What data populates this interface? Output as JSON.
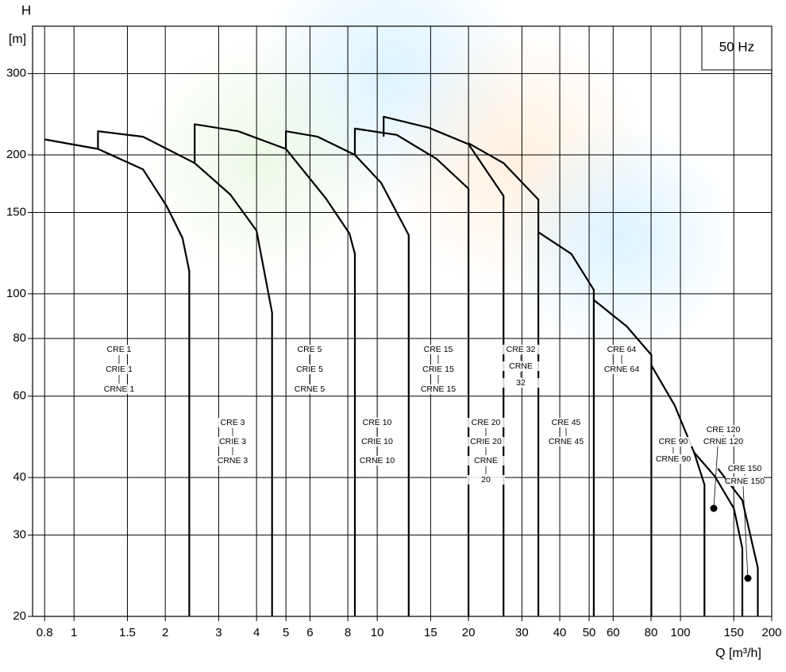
{
  "chart_data": {
    "type": "line",
    "x_label": "Q [m³/h]",
    "y_label": "H",
    "y_unit": "[m]",
    "annotation": "50 Hz",
    "log_x": true,
    "log_y": true,
    "grid": true,
    "line_color": "#000000",
    "xlim": [
      0.73,
      200
    ],
    "ylim": [
      20,
      380
    ],
    "xticks": [
      0.8,
      1,
      1.5,
      2,
      3,
      4,
      5,
      6,
      8,
      10,
      15,
      20,
      30,
      40,
      50,
      60,
      80,
      100,
      150,
      200
    ],
    "yticks": [
      20,
      30,
      40,
      60,
      80,
      100,
      150,
      200,
      300
    ],
    "series": [
      {
        "labels": [
          "CRE 1",
          "CRIE 1",
          "CRNE 1"
        ],
        "x": [
          0.8,
          1.2,
          1.69,
          2.02,
          2.28,
          2.4,
          2.4
        ],
        "values": [
          216,
          206,
          186,
          155,
          132,
          112,
          20
        ]
      },
      {
        "labels": [
          "CRE 3",
          "CRIE 3",
          "CRNE 3"
        ],
        "x": [
          1.2,
          1.2,
          1.69,
          2.5,
          3.28,
          4.0,
          4.5,
          4.5
        ],
        "values": [
          206,
          225,
          219,
          192,
          164,
          137,
          91,
          20
        ]
      },
      {
        "labels": [
          "CRE 5",
          "CRIE 5",
          "CRNE 5"
        ],
        "x": [
          2.5,
          2.5,
          3.48,
          5.0,
          6.77,
          8.1,
          8.44,
          8.44
        ],
        "values": [
          192,
          233,
          225,
          206,
          161,
          135,
          122,
          20
        ]
      },
      {
        "labels": [
          "CRE 10",
          "CRIE 10",
          "CRNE 10"
        ],
        "x": [
          5.0,
          5.0,
          6.36,
          8.44,
          10.3,
          12.7,
          12.7
        ],
        "values": [
          206,
          225,
          219,
          200,
          174,
          134,
          20
        ]
      },
      {
        "labels": [
          "CRE 15",
          "CRIE 15",
          "CRNE 15"
        ],
        "x": [
          8.44,
          8.44,
          11.6,
          15.7,
          20,
          20
        ],
        "values": [
          200,
          228,
          221,
          196,
          169,
          20
        ]
      },
      {
        "labels": [
          "CRE 20",
          "CRIE 20",
          "CRNE",
          "20"
        ],
        "x": [
          10.5,
          10.5,
          14.8,
          20,
          26.1,
          26.1
        ],
        "values": [
          219,
          242,
          229,
          211,
          163,
          20
        ]
      },
      {
        "labels": [
          "CRE 32",
          "CRNE",
          "32"
        ],
        "x": [
          20,
          26.1,
          34,
          34
        ],
        "values": [
          212,
          192,
          160,
          20
        ]
      },
      {
        "labels": [
          "CRE 45",
          "CRNE 45"
        ],
        "x": [
          34,
          43.7,
          51.8,
          51.8
        ],
        "values": [
          136,
          122,
          102,
          20
        ]
      },
      {
        "labels": [
          "CRE 64",
          "CRNE 64"
        ],
        "x": [
          51.8,
          66.5,
          80.2,
          80.2
        ],
        "values": [
          97,
          85,
          73.7,
          20
        ]
      },
      {
        "labels": [
          "CRE 90",
          "CRNE 90"
        ],
        "x": [
          80.2,
          95.6,
          111,
          120,
          120
        ],
        "values": [
          70,
          57.4,
          45.3,
          38.6,
          20
        ]
      },
      {
        "labels": [
          "CRE 120",
          "CRNE 120"
        ],
        "x": [
          111,
          130,
          150,
          160,
          160
        ],
        "values": [
          45.3,
          40.2,
          34.3,
          28.1,
          20
        ]
      },
      {
        "labels": [
          "CRE 150",
          "CRNE 150"
        ],
        "x": [
          133,
          160,
          180,
          180
        ],
        "values": [
          41.8,
          35.7,
          25.5,
          20
        ]
      }
    ]
  }
}
